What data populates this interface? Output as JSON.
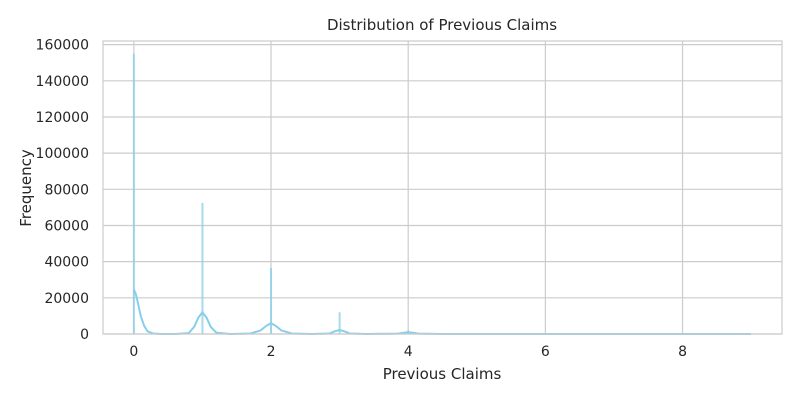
{
  "chart_data": {
    "type": "bar",
    "title": "Distribution of Previous Claims",
    "xlabel": "Previous Claims",
    "ylabel": "Frequency",
    "xlim": [
      -0.45,
      9.45
    ],
    "ylim": [
      0,
      162000
    ],
    "xticks": [
      "0",
      "2",
      "4",
      "6",
      "8"
    ],
    "yticks": [
      "0",
      "20000",
      "40000",
      "60000",
      "80000",
      "100000",
      "120000",
      "140000",
      "160000"
    ],
    "grid": true,
    "bar_color": "#87ceeb",
    "line_color": "#87ceeb",
    "bars": [
      {
        "x": 0,
        "value": 155000
      },
      {
        "x": 1,
        "value": 72500
      },
      {
        "x": 2,
        "value": 36500
      },
      {
        "x": 3,
        "value": 12000
      },
      {
        "x": 4,
        "value": 2000
      },
      {
        "x": 5,
        "value": 400
      },
      {
        "x": 6,
        "value": 100
      },
      {
        "x": 7,
        "value": 30
      },
      {
        "x": 8,
        "value": 10
      },
      {
        "x": 9,
        "value": 5
      }
    ],
    "kde": {
      "x": [
        0,
        0.03,
        0.06,
        0.1,
        0.15,
        0.2,
        0.28,
        0.4,
        0.6,
        0.8,
        0.88,
        0.94,
        1.0,
        1.06,
        1.12,
        1.2,
        1.4,
        1.7,
        1.85,
        1.93,
        2.0,
        2.07,
        2.15,
        2.3,
        2.6,
        2.85,
        2.93,
        3.0,
        3.07,
        3.15,
        3.4,
        3.85,
        3.95,
        4.0,
        4.05,
        4.15,
        4.5,
        5.5,
        7.0,
        9.0
      ],
      "y": [
        24500,
        22000,
        17000,
        10000,
        4500,
        1500,
        300,
        0,
        0,
        500,
        4000,
        9000,
        12000,
        9000,
        4000,
        800,
        0,
        300,
        2000,
        4500,
        6000,
        4500,
        2000,
        300,
        0,
        300,
        1500,
        2200,
        1500,
        300,
        0,
        200,
        800,
        1000,
        800,
        200,
        0,
        0,
        0,
        0
      ]
    }
  }
}
